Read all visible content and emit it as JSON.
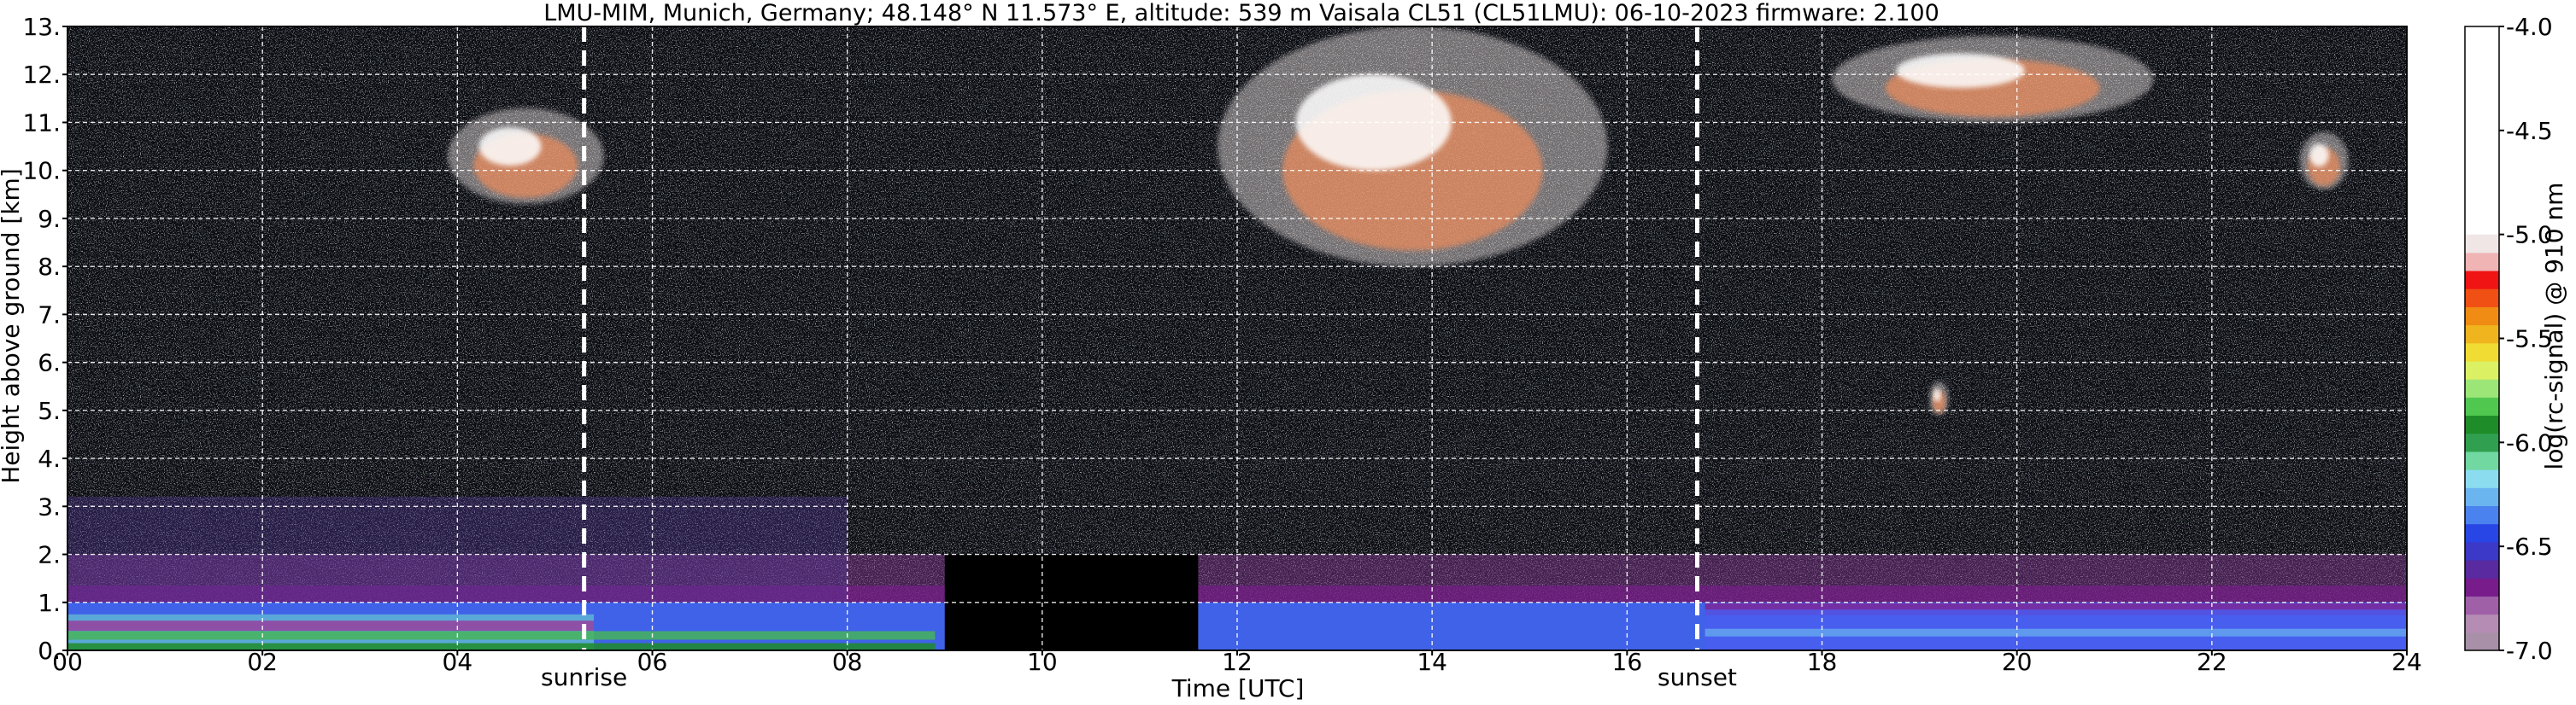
{
  "chart_data": {
    "type": "heatmap",
    "title": "LMU-MIM, Munich, Germany; 48.148° N 11.573° E, altitude: 539 m    Vaisala CL51 (CL51LMU): 06-10-2023    firmware: 2.100",
    "xlabel": "Time [UTC]",
    "ylabel": "Height above ground [km]",
    "xlim": [
      0,
      24
    ],
    "ylim": [
      0,
      13
    ],
    "x_ticks": [
      {
        "v": 0,
        "label": "00"
      },
      {
        "v": 2,
        "label": "02"
      },
      {
        "v": 4,
        "label": "04"
      },
      {
        "v": 6,
        "label": "06"
      },
      {
        "v": 8,
        "label": "08"
      },
      {
        "v": 10,
        "label": "10"
      },
      {
        "v": 12,
        "label": "12"
      },
      {
        "v": 14,
        "label": "14"
      },
      {
        "v": 16,
        "label": "16"
      },
      {
        "v": 18,
        "label": "18"
      },
      {
        "v": 20,
        "label": "20"
      },
      {
        "v": 22,
        "label": "22"
      },
      {
        "v": 24,
        "label": "24"
      }
    ],
    "y_ticks": [
      {
        "v": 0,
        "label": "0."
      },
      {
        "v": 1,
        "label": "1."
      },
      {
        "v": 2,
        "label": "2."
      },
      {
        "v": 3,
        "label": "3."
      },
      {
        "v": 4,
        "label": "4."
      },
      {
        "v": 5,
        "label": "5."
      },
      {
        "v": 6,
        "label": "6."
      },
      {
        "v": 7,
        "label": "7."
      },
      {
        "v": 8,
        "label": "8."
      },
      {
        "v": 9,
        "label": "9."
      },
      {
        "v": 10,
        "label": "10."
      },
      {
        "v": 11,
        "label": "11."
      },
      {
        "v": 12,
        "label": "12."
      },
      {
        "v": 13,
        "label": "13."
      }
    ],
    "grid": true,
    "events": [
      {
        "name": "sunrise",
        "time": 5.3
      },
      {
        "name": "sunset",
        "time": 16.72
      }
    ],
    "colorbar": {
      "label": "log(rc-signal) @ 910 nm",
      "range": [
        -7.0,
        -4.0
      ],
      "ticks": [
        {
          "v": -4.0,
          "label": "-4.0"
        },
        {
          "v": -4.5,
          "label": "-4.5"
        },
        {
          "v": -5.0,
          "label": "-5.0"
        },
        {
          "v": -5.5,
          "label": "-5.5"
        },
        {
          "v": -6.0,
          "label": "-6.0"
        },
        {
          "v": -6.5,
          "label": "-6.5"
        },
        {
          "v": -7.0,
          "label": "-7.0"
        }
      ],
      "colors": [
        "#a890a8",
        "#b48cb4",
        "#a060a8",
        "#781c8c",
        "#5a2aa0",
        "#3c38c8",
        "#2846e6",
        "#4a82f0",
        "#6ab4f0",
        "#8cdcf0",
        "#70d8a0",
        "#30a050",
        "#1e8c28",
        "#50c850",
        "#9ce678",
        "#dcf064",
        "#f0dc32",
        "#f0b41e",
        "#f08c14",
        "#f05014",
        "#f01414",
        "#f0b4b4",
        "#f0e6e6",
        "#ffffff"
      ]
    },
    "features": [
      {
        "kind": "boundary-layer",
        "t_start": 0,
        "t_end": 24,
        "h_top_km": 1.0
      },
      {
        "kind": "residual-layer",
        "t_start": 0,
        "t_end": 8,
        "h_top_km": 3.2
      },
      {
        "kind": "no-data",
        "t_start": 9.0,
        "t_end": 11.6,
        "h_top_km": 2.0
      },
      {
        "kind": "cirrus",
        "t_start": 3.9,
        "t_end": 5.5,
        "h_bottom_km": 9.3,
        "h_top_km": 11.3
      },
      {
        "kind": "cirrus",
        "t_start": 11.8,
        "t_end": 15.8,
        "h_bottom_km": 8.0,
        "h_top_km": 13.0
      },
      {
        "kind": "cirrus",
        "t_start": 18.1,
        "t_end": 21.4,
        "h_bottom_km": 11.0,
        "h_top_km": 12.8
      },
      {
        "kind": "cirrus",
        "t_start": 22.9,
        "t_end": 23.4,
        "h_bottom_km": 9.6,
        "h_top_km": 10.8
      },
      {
        "kind": "cloud",
        "t_start": 19.1,
        "t_end": 19.3,
        "h_bottom_km": 4.9,
        "h_top_km": 5.6
      }
    ]
  }
}
